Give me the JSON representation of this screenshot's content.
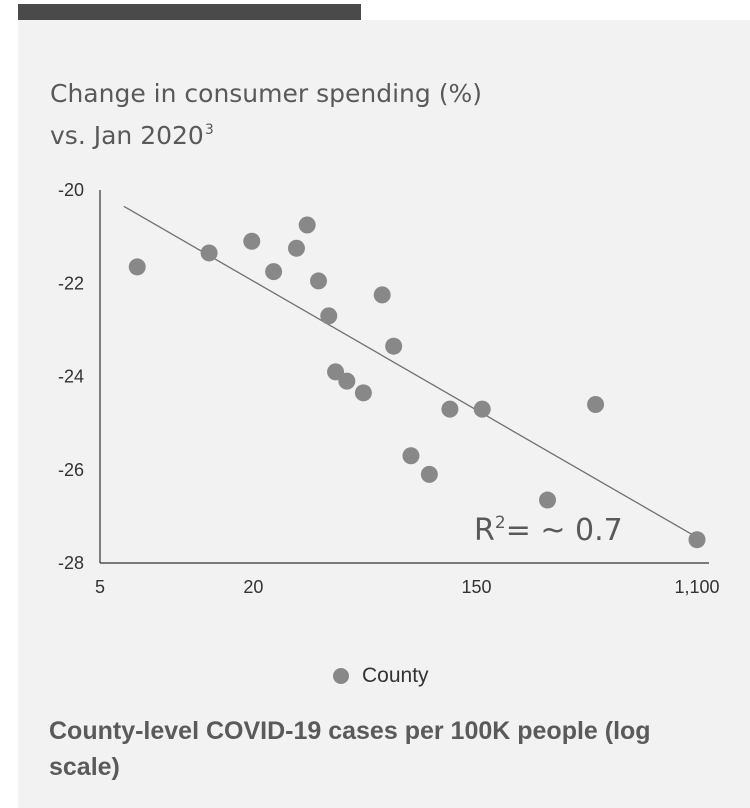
{
  "chart_data": {
    "type": "scatter",
    "ylabel_line1": "Change in consumer spending (%)",
    "ylabel_line2": "vs. Jan 2020",
    "ylabel_superscript": "3",
    "xlabel": "County-level COVID-19 cases per 100K people (log scale)",
    "x_scale": "log",
    "xlim": [
      5,
      1100
    ],
    "ylim": [
      -28,
      -20
    ],
    "x_ticks": [
      5,
      20,
      150,
      1100
    ],
    "x_tick_labels": [
      "5",
      "20",
      "150",
      "1,100"
    ],
    "y_ticks": [
      -20,
      -22,
      -24,
      -26,
      -28
    ],
    "y_tick_labels": [
      "-20",
      "-22",
      "-24",
      "-26",
      "-28"
    ],
    "series": [
      {
        "name": "County",
        "color": "#888888",
        "points": [
          {
            "x": 7.0,
            "y": -21.65
          },
          {
            "x": 13.4,
            "y": -21.35
          },
          {
            "x": 19.7,
            "y": -21.1
          },
          {
            "x": 24.0,
            "y": -21.75
          },
          {
            "x": 29.5,
            "y": -21.25
          },
          {
            "x": 32.5,
            "y": -20.75
          },
          {
            "x": 36.0,
            "y": -21.95
          },
          {
            "x": 39.5,
            "y": -22.7
          },
          {
            "x": 42.0,
            "y": -23.9
          },
          {
            "x": 46.5,
            "y": -24.1
          },
          {
            "x": 54.0,
            "y": -24.35
          },
          {
            "x": 64.0,
            "y": -22.25
          },
          {
            "x": 71.0,
            "y": -23.35
          },
          {
            "x": 83.0,
            "y": -25.7
          },
          {
            "x": 98.0,
            "y": -26.1
          },
          {
            "x": 118.0,
            "y": -24.7
          },
          {
            "x": 158.0,
            "y": -24.7
          },
          {
            "x": 285.0,
            "y": -26.65
          },
          {
            "x": 440.0,
            "y": -24.6
          },
          {
            "x": 1100.0,
            "y": -27.5
          }
        ]
      }
    ],
    "trendline": {
      "x": [
        6.2,
        1100
      ],
      "y": [
        -20.35,
        -27.45
      ]
    },
    "annotation": {
      "base": "R",
      "sup": "2",
      "rest": "= ~ 0.7"
    }
  },
  "legend": {
    "label": "County",
    "color": "#888888"
  }
}
